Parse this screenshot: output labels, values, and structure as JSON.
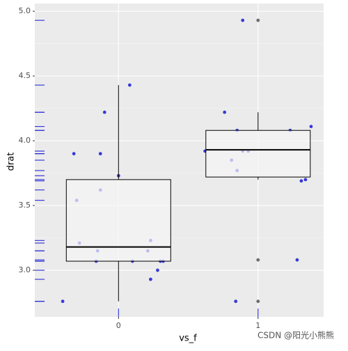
{
  "chart_data": {
    "type": "box",
    "x_label": "vs_f",
    "y_label": "drat",
    "categories": [
      "0",
      "1"
    ],
    "xlim": [
      -0.6,
      1.47
    ],
    "ylim": [
      2.64,
      5.06
    ],
    "yticks": [
      {
        "value": 3.0,
        "label": "3.0"
      },
      {
        "value": 3.5,
        "label": "3.5"
      },
      {
        "value": 4.0,
        "label": "4.0"
      },
      {
        "value": 4.5,
        "label": "4.5"
      },
      {
        "value": 5.0,
        "label": "5.0"
      }
    ],
    "grid": true,
    "boxes": [
      {
        "min": 2.76,
        "q1": 3.07,
        "median": 3.18,
        "q3": 3.7,
        "max": 4.43,
        "outliers": []
      },
      {
        "min": 3.7,
        "q1": 3.72,
        "median": 3.93,
        "q3": 4.08,
        "max": 4.22,
        "outliers": [
          4.93,
          3.08,
          2.76
        ]
      }
    ],
    "box_fill": "#f5f5f5",
    "points": {
      "color": "#1a1ad6",
      "x": [
        -0.4,
        -0.32,
        -0.3,
        -0.28,
        -0.13,
        -0.13,
        -0.1,
        -0.15,
        -0.16,
        0.0,
        0.08,
        0.1,
        0.21,
        0.23,
        0.23,
        0.28,
        0.3,
        0.32,
        0.62,
        0.76,
        0.81,
        0.85,
        0.85,
        0.89,
        0.89,
        0.93,
        0.84,
        1.23,
        1.28,
        1.31,
        1.34,
        1.38
      ],
      "y": [
        2.76,
        3.9,
        3.54,
        3.21,
        3.9,
        3.62,
        4.22,
        3.15,
        3.07,
        3.73,
        4.43,
        3.07,
        3.15,
        3.23,
        2.93,
        3.0,
        3.07,
        3.07,
        3.92,
        4.22,
        3.85,
        4.08,
        3.77,
        4.93,
        3.92,
        3.92,
        2.76,
        4.08,
        3.08,
        3.69,
        3.7,
        4.11
      ]
    },
    "watermark": "CSDN @阳光小熊熊"
  }
}
